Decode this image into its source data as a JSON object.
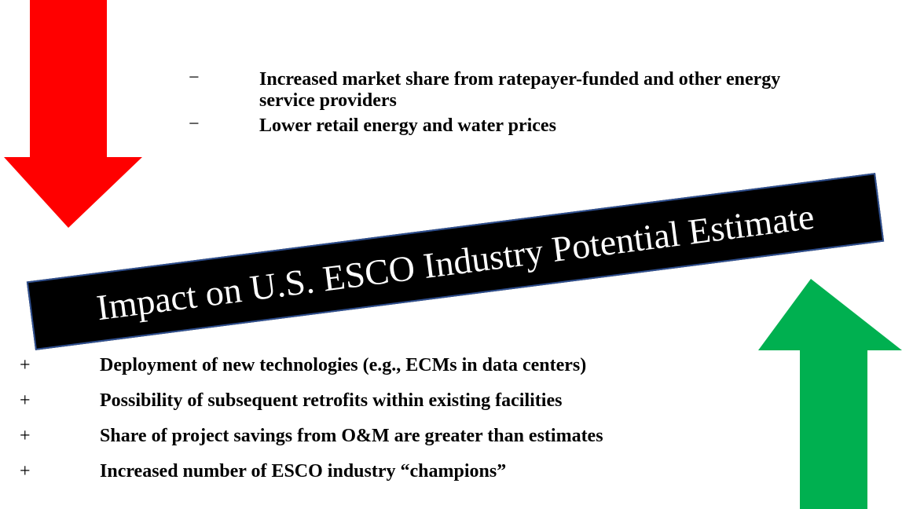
{
  "negatives": {
    "items": [
      {
        "symbol": "−",
        "text": "Increased market share from ratepayer-funded and other energy service providers"
      },
      {
        "symbol": "−",
        "text": "Lower retail energy and water prices"
      }
    ]
  },
  "banner": {
    "title": "Impact on U.S. ESCO Industry Potential Estimate"
  },
  "positives": {
    "items": [
      {
        "symbol": "+",
        "text": "Deployment of new technologies (e.g., ECMs in data centers)"
      },
      {
        "symbol": "+",
        "text": "Possibility of subsequent retrofits within existing facilities"
      },
      {
        "symbol": "+",
        "text": "Share of project savings from O&M are greater than estimates"
      },
      {
        "symbol": "+",
        "text": "Increased number of  ESCO industry “champions”"
      }
    ]
  }
}
